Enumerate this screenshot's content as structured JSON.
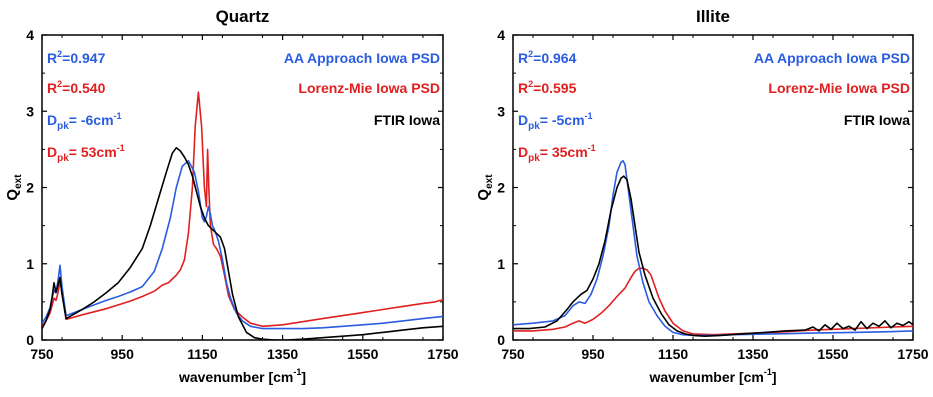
{
  "chart_data": [
    {
      "type": "line",
      "title": "Quartz",
      "xlabel_main": "wavenumber [cm",
      "xlabel_sup": "-1",
      "xlabel_end": "]",
      "ylabel_main": "Q",
      "ylabel_sub": "ext",
      "xlim": [
        750,
        1750
      ],
      "ylim": [
        0,
        4
      ],
      "xticks": [
        750,
        950,
        1150,
        1350,
        1550,
        1750
      ],
      "yticks": [
        0,
        1,
        2,
        3,
        4
      ],
      "annotations": {
        "r2_blue": {
          "pre": "R",
          "sup": "2",
          "post": "=0.947"
        },
        "r2_red": {
          "pre": "R",
          "sup": "2",
          "post": "=0.540"
        },
        "dpk_blue": {
          "pre": "D",
          "sub": "pk",
          "mid": "=  -6cm",
          "sup": "-1"
        },
        "dpk_red": {
          "pre": "D",
          "sub": "pk",
          "mid": "=  53cm",
          "sup": "-1"
        }
      },
      "legend": [
        "AA Approach Iowa PSD",
        "Lorenz-Mie Iowa PSD",
        "FTIR Iowa"
      ],
      "series": [
        {
          "name": "AA Approach Iowa PSD",
          "color": "#2a5ce0",
          "x": [
            750,
            760,
            770,
            775,
            780,
            785,
            790,
            795,
            800,
            810,
            830,
            850,
            880,
            910,
            940,
            970,
            1000,
            1030,
            1050,
            1070,
            1085,
            1100,
            1115,
            1130,
            1140,
            1150,
            1155,
            1160,
            1165,
            1170,
            1175,
            1180,
            1190,
            1200,
            1210,
            1220,
            1235,
            1250,
            1270,
            1300,
            1350,
            1400,
            1450,
            1500,
            1550,
            1600,
            1650,
            1700,
            1750
          ],
          "y": [
            0.22,
            0.3,
            0.42,
            0.55,
            0.65,
            0.62,
            0.78,
            0.98,
            0.7,
            0.32,
            0.36,
            0.4,
            0.46,
            0.52,
            0.57,
            0.63,
            0.7,
            0.9,
            1.2,
            1.6,
            2.0,
            2.28,
            2.35,
            2.2,
            1.95,
            1.6,
            1.55,
            1.62,
            1.75,
            1.65,
            1.5,
            1.45,
            1.3,
            1.05,
            0.75,
            0.55,
            0.35,
            0.25,
            0.18,
            0.15,
            0.15,
            0.15,
            0.16,
            0.18,
            0.2,
            0.22,
            0.25,
            0.28,
            0.31
          ]
        },
        {
          "name": "Lorenz-Mie Iowa PSD",
          "color": "#e02020",
          "x": [
            750,
            760,
            770,
            775,
            780,
            785,
            790,
            795,
            800,
            810,
            830,
            850,
            880,
            910,
            940,
            970,
            1000,
            1030,
            1050,
            1065,
            1075,
            1085,
            1095,
            1105,
            1115,
            1125,
            1132,
            1140,
            1148,
            1155,
            1160,
            1163,
            1166,
            1170,
            1178,
            1185,
            1195,
            1205,
            1215,
            1230,
            1250,
            1270,
            1300,
            1350,
            1400,
            1450,
            1500,
            1550,
            1600,
            1650,
            1700,
            1730,
            1750
          ],
          "y": [
            0.18,
            0.25,
            0.35,
            0.45,
            0.55,
            0.52,
            0.62,
            0.78,
            0.62,
            0.27,
            0.3,
            0.33,
            0.37,
            0.41,
            0.46,
            0.51,
            0.57,
            0.64,
            0.72,
            0.75,
            0.8,
            0.85,
            0.92,
            1.05,
            1.4,
            2.0,
            2.8,
            3.25,
            2.8,
            2.0,
            1.75,
            2.5,
            2.0,
            1.5,
            1.25,
            1.2,
            1.1,
            0.85,
            0.58,
            0.4,
            0.3,
            0.22,
            0.18,
            0.2,
            0.24,
            0.28,
            0.32,
            0.36,
            0.4,
            0.44,
            0.48,
            0.5,
            0.53
          ]
        },
        {
          "name": "FTIR Iowa",
          "color": "#000000",
          "x": [
            750,
            760,
            770,
            775,
            780,
            785,
            790,
            795,
            800,
            810,
            830,
            850,
            880,
            910,
            940,
            970,
            1000,
            1020,
            1040,
            1060,
            1075,
            1085,
            1095,
            1105,
            1115,
            1125,
            1135,
            1145,
            1155,
            1165,
            1175,
            1185,
            1195,
            1205,
            1215,
            1225,
            1240,
            1260,
            1280,
            1300,
            1330,
            1360,
            1400,
            1450,
            1500,
            1550,
            1600,
            1650,
            1700,
            1750
          ],
          "y": [
            0.15,
            0.25,
            0.4,
            0.55,
            0.75,
            0.62,
            0.72,
            0.82,
            0.6,
            0.28,
            0.34,
            0.4,
            0.5,
            0.62,
            0.75,
            0.95,
            1.2,
            1.5,
            1.85,
            2.2,
            2.45,
            2.52,
            2.48,
            2.4,
            2.3,
            2.15,
            1.95,
            1.75,
            1.6,
            1.5,
            1.45,
            1.4,
            1.35,
            1.2,
            0.9,
            0.6,
            0.3,
            0.1,
            0.03,
            0.01,
            0.0,
            0.0,
            0.01,
            0.03,
            0.05,
            0.07,
            0.1,
            0.13,
            0.16,
            0.18
          ]
        }
      ]
    },
    {
      "type": "line",
      "title": "Illite",
      "xlabel_main": "wavenumber [cm",
      "xlabel_sup": "-1",
      "xlabel_end": "]",
      "ylabel_main": "Q",
      "ylabel_sub": "ext",
      "xlim": [
        750,
        1750
      ],
      "ylim": [
        0,
        4
      ],
      "xticks": [
        750,
        950,
        1150,
        1350,
        1550,
        1750
      ],
      "yticks": [
        0,
        1,
        2,
        3,
        4
      ],
      "annotations": {
        "r2_blue": {
          "pre": "R",
          "sup": "2",
          "post": "=0.964"
        },
        "r2_red": {
          "pre": "R",
          "sup": "2",
          "post": "=0.595"
        },
        "dpk_blue": {
          "pre": "D",
          "sub": "pk",
          "mid": "=  -5cm",
          "sup": "-1"
        },
        "dpk_red": {
          "pre": "D",
          "sub": "pk",
          "mid": "=  35cm",
          "sup": "-1"
        }
      },
      "legend": [
        "AA Approach Iowa PSD",
        "Lorenz-Mie Iowa PSD",
        "FTIR Iowa"
      ],
      "series": [
        {
          "name": "AA Approach Iowa PSD",
          "color": "#2a5ce0",
          "x": [
            750,
            800,
            850,
            880,
            900,
            915,
            930,
            945,
            960,
            975,
            990,
            1000,
            1010,
            1020,
            1025,
            1030,
            1040,
            1050,
            1060,
            1075,
            1090,
            1110,
            1130,
            1150,
            1175,
            1200,
            1250,
            1300,
            1400,
            1500,
            1600,
            1700,
            1750
          ],
          "y": [
            0.2,
            0.22,
            0.25,
            0.32,
            0.45,
            0.5,
            0.48,
            0.6,
            0.8,
            1.1,
            1.5,
            1.9,
            2.2,
            2.33,
            2.35,
            2.3,
            1.9,
            1.5,
            1.1,
            0.75,
            0.5,
            0.32,
            0.18,
            0.1,
            0.07,
            0.06,
            0.06,
            0.07,
            0.08,
            0.09,
            0.1,
            0.11,
            0.12
          ]
        },
        {
          "name": "Lorenz-Mie Iowa PSD",
          "color": "#e02020",
          "x": [
            750,
            800,
            850,
            880,
            900,
            915,
            930,
            950,
            970,
            990,
            1010,
            1030,
            1045,
            1055,
            1065,
            1075,
            1085,
            1095,
            1105,
            1115,
            1130,
            1150,
            1175,
            1200,
            1250,
            1300,
            1400,
            1500,
            1600,
            1700,
            1750
          ],
          "y": [
            0.12,
            0.12,
            0.14,
            0.17,
            0.22,
            0.25,
            0.22,
            0.27,
            0.35,
            0.45,
            0.57,
            0.68,
            0.82,
            0.9,
            0.94,
            0.94,
            0.92,
            0.85,
            0.7,
            0.55,
            0.38,
            0.22,
            0.12,
            0.08,
            0.07,
            0.08,
            0.1,
            0.13,
            0.15,
            0.17,
            0.18
          ]
        },
        {
          "name": "FTIR Iowa",
          "color": "#000000",
          "x": [
            750,
            790,
            830,
            860,
            885,
            900,
            910,
            920,
            935,
            950,
            965,
            980,
            995,
            1010,
            1020,
            1027,
            1035,
            1045,
            1055,
            1065,
            1080,
            1100,
            1120,
            1140,
            1160,
            1180,
            1200,
            1230,
            1270,
            1320,
            1380,
            1430,
            1480,
            1500,
            1515,
            1530,
            1545,
            1560,
            1575,
            1590,
            1605,
            1620,
            1635,
            1650,
            1665,
            1680,
            1695,
            1710,
            1725,
            1740,
            1750
          ],
          "y": [
            0.15,
            0.15,
            0.17,
            0.25,
            0.4,
            0.5,
            0.55,
            0.6,
            0.65,
            0.8,
            1.0,
            1.3,
            1.7,
            2.0,
            2.12,
            2.15,
            2.1,
            1.85,
            1.5,
            1.15,
            0.85,
            0.55,
            0.35,
            0.2,
            0.12,
            0.08,
            0.06,
            0.05,
            0.06,
            0.08,
            0.1,
            0.12,
            0.13,
            0.17,
            0.12,
            0.2,
            0.14,
            0.22,
            0.15,
            0.18,
            0.13,
            0.24,
            0.15,
            0.22,
            0.18,
            0.25,
            0.16,
            0.22,
            0.19,
            0.24,
            0.2
          ]
        }
      ]
    }
  ]
}
